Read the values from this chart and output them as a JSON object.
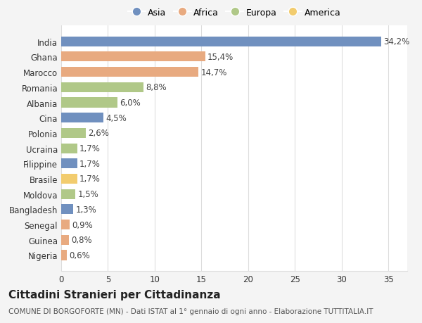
{
  "countries": [
    "India",
    "Ghana",
    "Marocco",
    "Romania",
    "Albania",
    "Cina",
    "Polonia",
    "Ucraina",
    "Filippine",
    "Brasile",
    "Moldova",
    "Bangladesh",
    "Senegal",
    "Guinea",
    "Nigeria"
  ],
  "values": [
    34.2,
    15.4,
    14.7,
    8.8,
    6.0,
    4.5,
    2.6,
    1.7,
    1.7,
    1.7,
    1.5,
    1.3,
    0.9,
    0.8,
    0.6
  ],
  "labels": [
    "34,2%",
    "15,4%",
    "14,7%",
    "8,8%",
    "6,0%",
    "4,5%",
    "2,6%",
    "1,7%",
    "1,7%",
    "1,7%",
    "1,5%",
    "1,3%",
    "0,9%",
    "0,8%",
    "0,6%"
  ],
  "regions": [
    "Asia",
    "Africa",
    "Africa",
    "Europa",
    "Europa",
    "Asia",
    "Europa",
    "Europa",
    "Asia",
    "America",
    "Europa",
    "Asia",
    "Africa",
    "Africa",
    "Africa"
  ],
  "region_colors": {
    "Asia": "#7090bf",
    "Africa": "#e8aa80",
    "Europa": "#b0c888",
    "America": "#f2cc6e"
  },
  "legend_order": [
    "Asia",
    "Africa",
    "Europa",
    "America"
  ],
  "xlim": [
    0,
    37
  ],
  "xticks": [
    0,
    5,
    10,
    15,
    20,
    25,
    30,
    35
  ],
  "bg_color": "#f4f4f4",
  "plot_bg_color": "#ffffff",
  "grid_color": "#dddddd",
  "title": "Cittadini Stranieri per Cittadinanza",
  "subtitle": "COMUNE DI BORGOFORTE (MN) - Dati ISTAT al 1° gennaio di ogni anno - Elaborazione TUTTITALIA.IT",
  "bar_height": 0.65,
  "label_fontsize": 8.5,
  "tick_fontsize": 8.5,
  "title_fontsize": 11,
  "subtitle_fontsize": 7.5
}
